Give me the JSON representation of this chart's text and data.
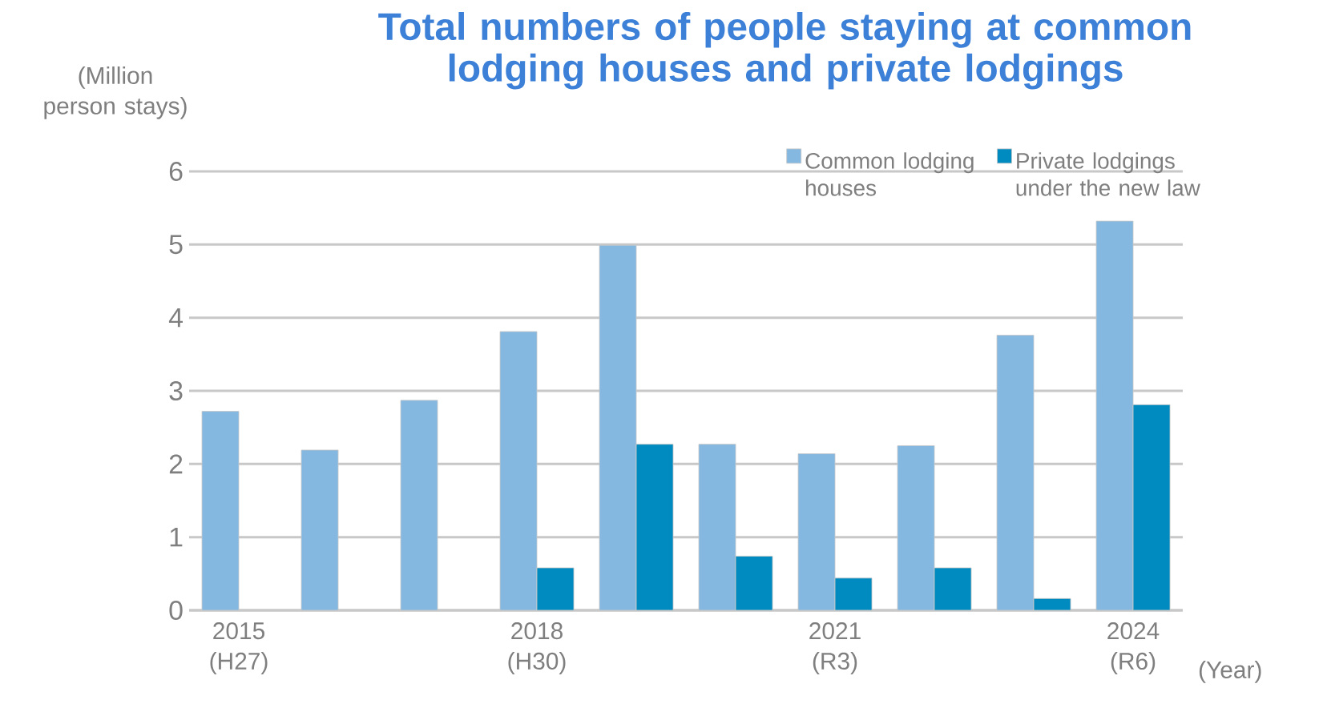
{
  "chart_data": {
    "type": "bar",
    "title": "Total numbers of people staying at common lodging houses and private lodgings",
    "ylabel": "(Million person stays)",
    "xlabel": "(Year)",
    "categories": [
      "2015 (H27)",
      null,
      null,
      "2018 (H30)",
      null,
      null,
      "2021 (R3)",
      null,
      null,
      "2024 (R6)"
    ],
    "series": [
      {
        "name": "Common lodging houses",
        "color": "#85b8e0",
        "values": [
          2.72,
          2.19,
          2.87,
          3.81,
          4.99,
          2.27,
          2.14,
          2.25,
          3.76,
          5.32
        ]
      },
      {
        "name": "Private lodgings under the new law",
        "color": "#008bc0",
        "values": [
          null,
          null,
          null,
          0.58,
          2.27,
          0.74,
          0.44,
          0.58,
          0.16,
          2.81
        ]
      }
    ],
    "ylim": [
      0,
      6
    ],
    "yticks": [
      0,
      1,
      2,
      3,
      4,
      5,
      6
    ],
    "grid": "y",
    "legend": "top right"
  }
}
